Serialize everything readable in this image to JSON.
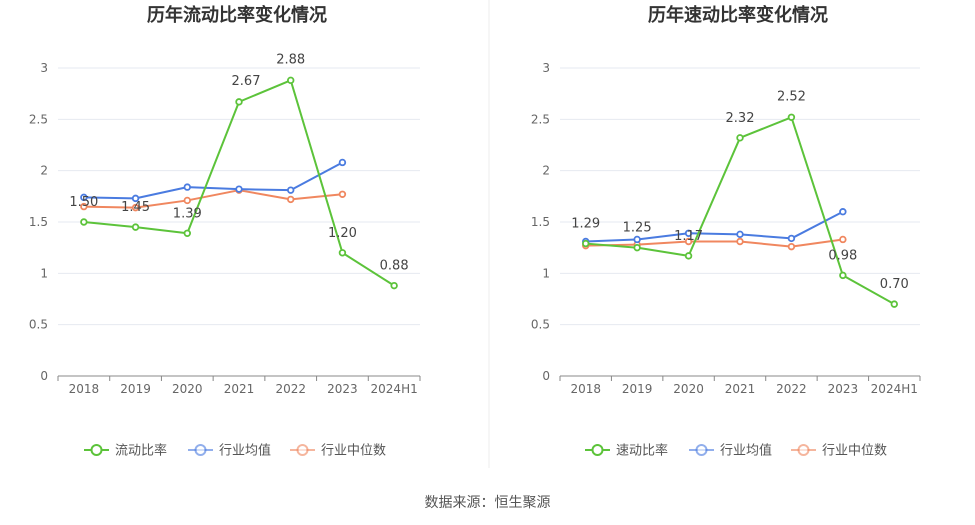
{
  "source_text": "数据来源：恒生聚源",
  "chart_data": [
    {
      "type": "line",
      "title": "历年流动比率变化情况",
      "categories": [
        "2018",
        "2019",
        "2020",
        "2021",
        "2022",
        "2023",
        "2024H1"
      ],
      "ylim": [
        0,
        3
      ],
      "yticks": [
        "0",
        "0.5",
        "1",
        "1.5",
        "2",
        "2.5",
        "3"
      ],
      "grid": true,
      "legend_position": "bottom",
      "series": [
        {
          "name": "流动比率",
          "color": "#5cc33a",
          "values": [
            1.5,
            1.45,
            1.39,
            2.67,
            2.88,
            1.2,
            0.88
          ],
          "labels": [
            "1.50",
            "1.45",
            "1.39",
            "2.67",
            "2.88",
            "1.20",
            "0.88"
          ]
        },
        {
          "name": "行业均值",
          "color": "#4a7be0",
          "values": [
            1.74,
            1.73,
            1.84,
            1.82,
            1.81,
            2.08,
            null
          ]
        },
        {
          "name": "行业中位数",
          "color": "#f0875f",
          "values": [
            1.65,
            1.64,
            1.71,
            1.81,
            1.72,
            1.77,
            null
          ]
        }
      ]
    },
    {
      "type": "line",
      "title": "历年速动比率变化情况",
      "categories": [
        "2018",
        "2019",
        "2020",
        "2021",
        "2022",
        "2023",
        "2024H1"
      ],
      "ylim": [
        0,
        3
      ],
      "yticks": [
        "0",
        "0.5",
        "1",
        "1.5",
        "2",
        "2.5",
        "3"
      ],
      "grid": true,
      "legend_position": "bottom",
      "series": [
        {
          "name": "速动比率",
          "color": "#5cc33a",
          "values": [
            1.29,
            1.25,
            1.17,
            2.32,
            2.52,
            0.98,
            0.7
          ],
          "labels": [
            "1.29",
            "1.25",
            "1.17",
            "2.32",
            "2.52",
            "0.98",
            "0.70"
          ]
        },
        {
          "name": "行业均值",
          "color": "#4a7be0",
          "values": [
            1.31,
            1.33,
            1.39,
            1.38,
            1.34,
            1.6,
            null
          ]
        },
        {
          "name": "行业中位数",
          "color": "#f0875f",
          "values": [
            1.27,
            1.28,
            1.31,
            1.31,
            1.26,
            1.33,
            null
          ]
        }
      ]
    }
  ]
}
